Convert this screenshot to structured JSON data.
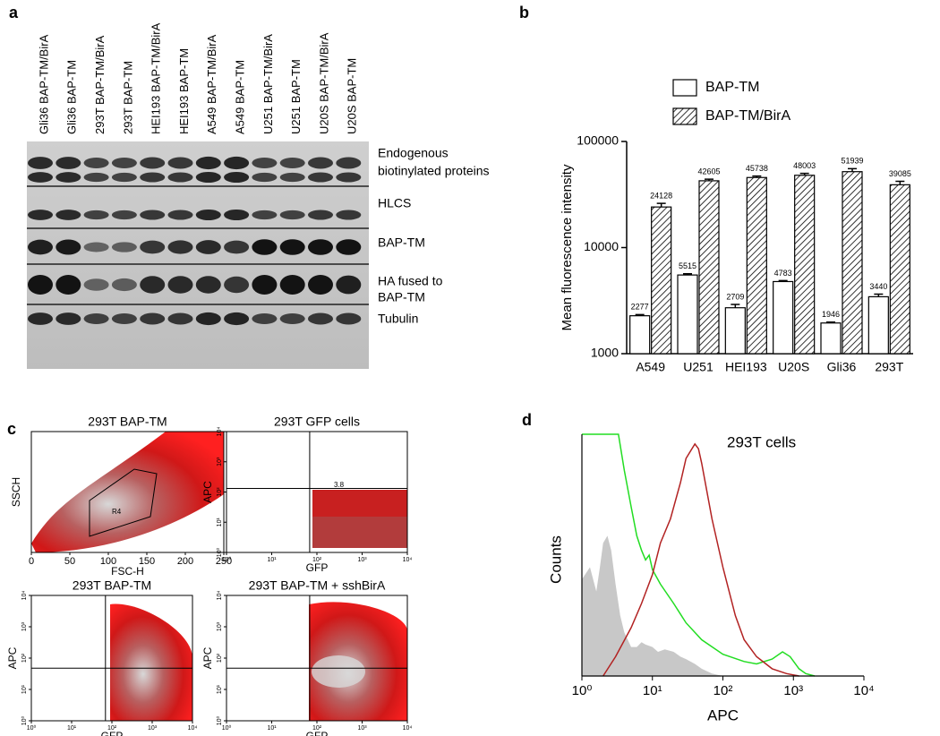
{
  "panel_labels": [
    "a",
    "b",
    "c",
    "d"
  ],
  "blot": {
    "lanes": [
      "Gli36 BAP-TM/BirA",
      "Gli36 BAP-TM",
      "293T BAP-TM/BirA",
      "293T BAP-TM",
      "HEI193 BAP-TM/BirA",
      "HEI193 BAP-TM",
      "A549 BAP-TM/BirA",
      "A549 BAP-TM",
      "U251 BAP-TM/BirA",
      "U251 BAP-TM",
      "U20S BAP-TM/BirA",
      "U20S BAP-TM"
    ],
    "bands": [
      [
        "Endogenous",
        "biotinylated proteins"
      ],
      [
        "HLCS"
      ],
      [
        "BAP-TM"
      ],
      [
        "HA fused to",
        "BAP-TM"
      ],
      [
        "Tubulin"
      ]
    ]
  },
  "flow": {
    "plots": [
      {
        "title": "293T BAP-TM",
        "xlabel": "FSC-H",
        "ylabel": "SSCH",
        "xlim": [
          0,
          250
        ],
        "xticks": [
          0,
          50,
          100,
          150,
          200,
          250
        ],
        "annotation": "R4"
      },
      {
        "title": "293T GFP cells",
        "xlabel": "GFP",
        "ylabel": "APC",
        "xlim": [
          1,
          10000
        ],
        "xticks": [
          {
            "value": 1,
            "label": "10⁰"
          },
          {
            "value": 10,
            "label": "10¹"
          },
          {
            "value": 100,
            "label": "10²"
          },
          {
            "value": 1000,
            "label": "10³"
          },
          {
            "value": 10000,
            "label": "10⁴"
          }
        ],
        "ylim": [
          1,
          10000
        ],
        "yticks": [
          {
            "value": 1,
            "label": "10⁰"
          },
          {
            "value": 10,
            "label": "10¹"
          },
          {
            "value": 100,
            "label": "10²"
          },
          {
            "value": 1000,
            "label": "10³"
          },
          {
            "value": 10000,
            "label": "10⁴"
          }
        ],
        "annotation": "3.8"
      },
      {
        "title": "293T BAP-TM",
        "xlabel": "GFP",
        "ylabel": "APC",
        "xlim": [
          1,
          10000
        ],
        "xticks": [
          {
            "value": 1,
            "label": "10⁰"
          },
          {
            "value": 10,
            "label": "10¹"
          },
          {
            "value": 100,
            "label": "10²"
          },
          {
            "value": 1000,
            "label": "10³"
          },
          {
            "value": 10000,
            "label": "10⁴"
          }
        ],
        "ylim": [
          1,
          10000
        ],
        "yticks": [
          {
            "value": 1,
            "label": "10⁰"
          },
          {
            "value": 10,
            "label": "10¹"
          },
          {
            "value": 100,
            "label": "10²"
          },
          {
            "value": 1000,
            "label": "10³"
          },
          {
            "value": 10000,
            "label": "10⁴"
          }
        ]
      },
      {
        "title": "293T BAP-TM + sshBirA",
        "xlabel": "GFP",
        "ylabel": "APC",
        "xlim": [
          1,
          10000
        ],
        "xticks": [
          {
            "value": 1,
            "label": "10⁰"
          },
          {
            "value": 10,
            "label": "10¹"
          },
          {
            "value": 100,
            "label": "10²"
          },
          {
            "value": 1000,
            "label": "10³"
          },
          {
            "value": 10000,
            "label": "10⁴"
          }
        ],
        "ylim": [
          1,
          10000
        ],
        "yticks": [
          {
            "value": 1,
            "label": "10⁰"
          },
          {
            "value": 10,
            "label": "10¹"
          },
          {
            "value": 100,
            "label": "10²"
          },
          {
            "value": 1000,
            "label": "10³"
          },
          {
            "value": 10000,
            "label": "10⁴"
          }
        ]
      }
    ]
  },
  "chart_data": [
    {
      "type": "bar",
      "y_label": "Mean fluorescence intensity",
      "log_y": true,
      "ylim": [
        1000,
        100000
      ],
      "yticks": [
        1000,
        10000,
        100000
      ],
      "categories": [
        "A549",
        "U251",
        "HEI193",
        "U20S",
        "Gli36",
        "293T"
      ],
      "series": [
        {
          "name": "BAP-TM",
          "color": "#ffffff",
          "values": [
            2277,
            5515,
            2709,
            4783,
            1946,
            3440
          ],
          "errors": [
            60,
            150,
            200,
            100,
            40,
            200
          ]
        },
        {
          "name": "BAP-TM/BirA",
          "color": "#000000",
          "pattern": "hatched",
          "values": [
            24128,
            42605,
            45738,
            48003,
            51939,
            39085
          ],
          "errors": [
            2000,
            1500,
            1500,
            2000,
            3500,
            3000
          ]
        }
      ]
    },
    {
      "type": "line",
      "title": "293T cells",
      "x_label": "APC",
      "y_label": "Counts",
      "log_x": true,
      "xlim": [
        1,
        10000
      ],
      "ylim": [
        0,
        100
      ],
      "xticks": [
        {
          "value": 1,
          "label": "10⁰"
        },
        {
          "value": 10,
          "label": "10¹"
        },
        {
          "value": 100,
          "label": "10²"
        },
        {
          "value": 1000,
          "label": "10³"
        },
        {
          "value": 10000,
          "label": "10⁴"
        }
      ],
      "series": [
        {
          "color": "#c8c8c8",
          "style": "area",
          "x": [
            1,
            1.3,
            1.6,
            1.8,
            2,
            2.3,
            2.6,
            3,
            3.5,
            4,
            5,
            6,
            7,
            8,
            10,
            12,
            15,
            20,
            25,
            30,
            40,
            50,
            70,
            100
          ],
          "values": [
            40,
            45,
            35,
            45,
            55,
            58,
            52,
            38,
            25,
            18,
            12,
            12,
            14,
            13,
            12,
            10,
            11,
            10,
            8,
            7,
            5,
            3,
            1,
            0
          ]
        },
        {
          "color": "#22dd22",
          "style": "line",
          "x": [
            1,
            3.3,
            4,
            5,
            6,
            7,
            8,
            9,
            10,
            13,
            20,
            30,
            50,
            100,
            200,
            300,
            500,
            700,
            900,
            1200,
            1500,
            2000
          ],
          "values": [
            100,
            100,
            85,
            70,
            58,
            52,
            48,
            50,
            44,
            38,
            30,
            22,
            15,
            9,
            6,
            5,
            7,
            10,
            8,
            3,
            1,
            0
          ]
        },
        {
          "color": "#b22222",
          "style": "line",
          "x": [
            2,
            3,
            5,
            7,
            10,
            13,
            18,
            25,
            30,
            40,
            45,
            50,
            70,
            100,
            150,
            200,
            300,
            500,
            800,
            1200
          ],
          "values": [
            0,
            8,
            20,
            30,
            42,
            55,
            65,
            80,
            90,
            96,
            94,
            88,
            65,
            45,
            25,
            15,
            8,
            3,
            1,
            0
          ]
        }
      ]
    }
  ]
}
